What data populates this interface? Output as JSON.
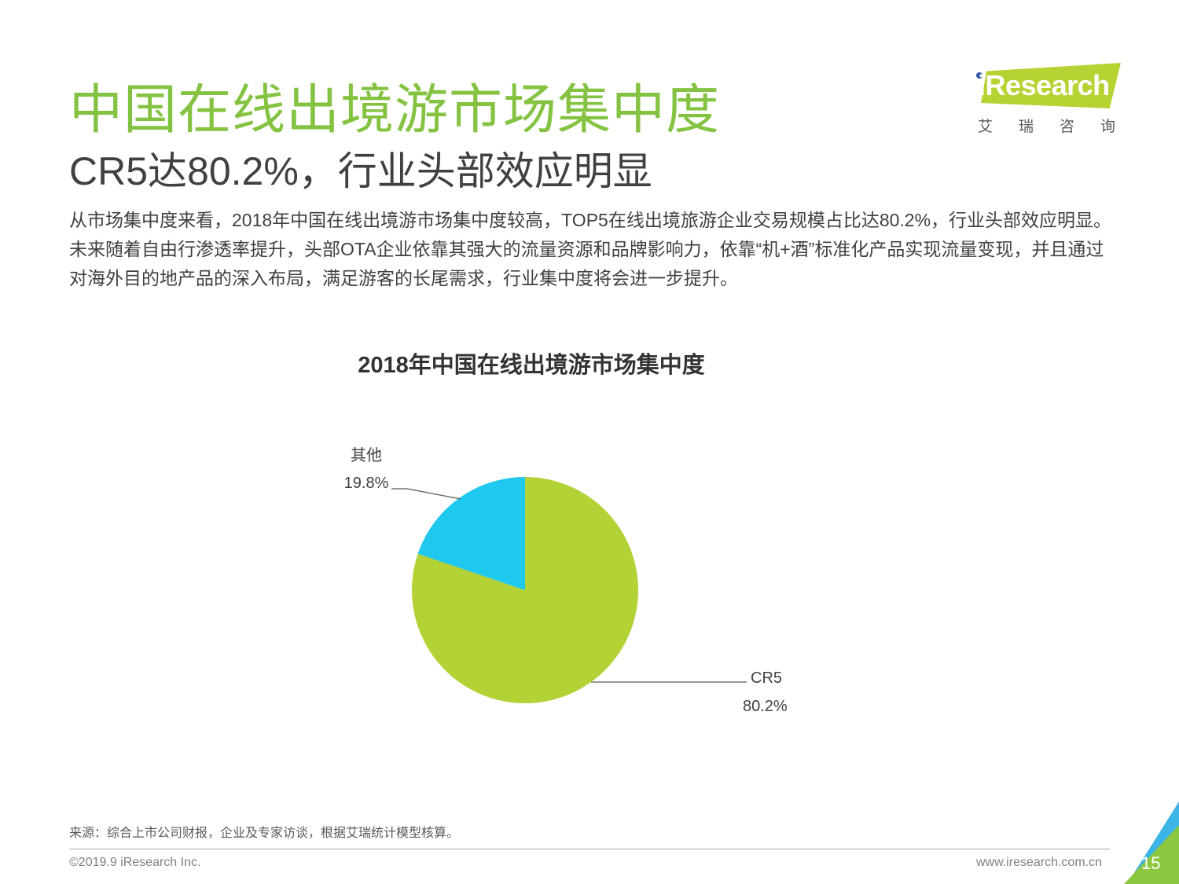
{
  "header": {
    "title": "中国在线出境游市场集中度",
    "subtitle": "CR5达80.2%，行业头部效应明显",
    "body": "从市场集中度来看，2018年中国在线出境游市场集中度较高，TOP5在线出境旅游企业交易规模占比达80.2%，行业头部效应明显。未来随着自由行渗透率提升，头部OTA企业依靠其强大的流量资源和品牌影响力，依靠“机+酒”标准化产品实现流量变现，并且通过对海外目的地产品的深入布局，满足游客的长尾需求，行业集中度将会进一步提升。"
  },
  "logo": {
    "text": "iResearch",
    "cn": "艾瑞咨询"
  },
  "chart_data": {
    "type": "pie",
    "title": "2018年中国在线出境游市场集中度",
    "categories": [
      "CR5",
      "其他"
    ],
    "values": [
      80.2,
      19.8
    ],
    "value_labels": [
      "80.2%",
      "19.8%"
    ],
    "colors": [
      "#b2d235",
      "#1fc8ef"
    ],
    "legend": "none"
  },
  "footer": {
    "source": "来源：综合上市公司财报，企业及专家访谈，根据艾瑞统计模型核算。",
    "copyright": "©2019.9 iResearch Inc.",
    "website": "www.iresearch.com.cn",
    "page_number": "15"
  },
  "colors": {
    "title_green": "#84c341",
    "logo_green": "#b6d334",
    "corner_green": "#8dc63f",
    "corner_blue": "#3cb4e5"
  }
}
